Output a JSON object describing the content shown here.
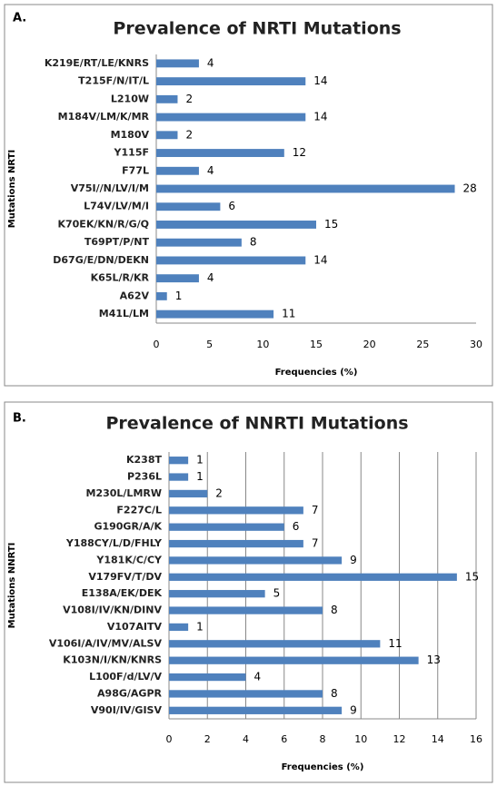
{
  "chart_data": [
    {
      "type": "bar",
      "orientation": "horizontal",
      "panel_label": "A.",
      "title": "Prevalence of NRTI Mutations",
      "categories": [
        "K219E/RT/LE/KNRS",
        "T215F/N/IT/L",
        "L210W",
        "M184V/LM/K/MR",
        "M180V",
        "Y115F",
        "F77L",
        "V75I//N/LV/I/M",
        "L74V/LV/M/I",
        "K70EK/KN/R/G/Q",
        "T69PT/P/NT",
        "D67G/E/DN/DEKN",
        "K65L/R/KR",
        "A62V",
        "M41L/LM"
      ],
      "values": [
        4,
        14,
        2,
        14,
        2,
        12,
        4,
        28,
        6,
        15,
        8,
        14,
        4,
        1,
        11
      ],
      "color": "#4f81bd",
      "xlim": [
        0,
        30
      ],
      "xticks": [
        0,
        5,
        10,
        15,
        20,
        25,
        30
      ],
      "grid": false,
      "xlabel": "Frequencies (%)",
      "ylabel": "Mutations NRTI"
    },
    {
      "type": "bar",
      "orientation": "horizontal",
      "panel_label": "B.",
      "title": "Prevalence of NNRTI Mutations",
      "categories": [
        "K238T",
        "P236L",
        "M230L/LMRW",
        "F227C/L",
        "G190GR/A/K",
        "Y188CY/L/D/FHLY",
        "Y181K/C/CY",
        "V179FV/T/DV",
        "E138A/EK/DEK",
        "V108I/IV/KN/DINV",
        "V107AITV",
        "V106I/A/IV/MV/ALSV",
        "K103N/I/KN/KNRS",
        "L100F/d/LV/V",
        "A98G/AGPR",
        "V90I/IV/GISV"
      ],
      "values": [
        1,
        1,
        2,
        7,
        6,
        7,
        9,
        15,
        5,
        8,
        1,
        11,
        13,
        4,
        8,
        9
      ],
      "color": "#4f81bd",
      "xlim": [
        0,
        16
      ],
      "xticks": [
        0,
        2,
        4,
        6,
        8,
        10,
        12,
        14,
        16
      ],
      "grid": true,
      "xlabel": "Frequencies (%)",
      "ylabel": "Mutations NNRTI"
    }
  ]
}
